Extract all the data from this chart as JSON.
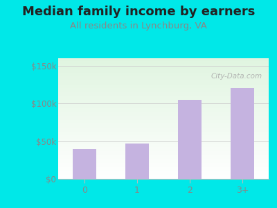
{
  "title": "Median family income by earners",
  "subtitle": "All residents in Lynchburg, VA",
  "categories": [
    "0",
    "1",
    "2",
    "3+"
  ],
  "values": [
    40000,
    47000,
    105000,
    120000
  ],
  "bar_color": "#c5b3e0",
  "title_fontsize": 13,
  "subtitle_fontsize": 9.5,
  "ylabel_ticks": [
    0,
    50000,
    100000,
    150000
  ],
  "ylabel_labels": [
    "$0",
    "$50k",
    "$100k",
    "$150k"
  ],
  "ylim": [
    0,
    160000
  ],
  "outer_bg": "#00e8e8",
  "title_color": "#222222",
  "subtitle_color": "#888888",
  "tick_label_color": "#888888",
  "watermark_text": "City-Data.com",
  "watermark_color": "#aaaaaa"
}
